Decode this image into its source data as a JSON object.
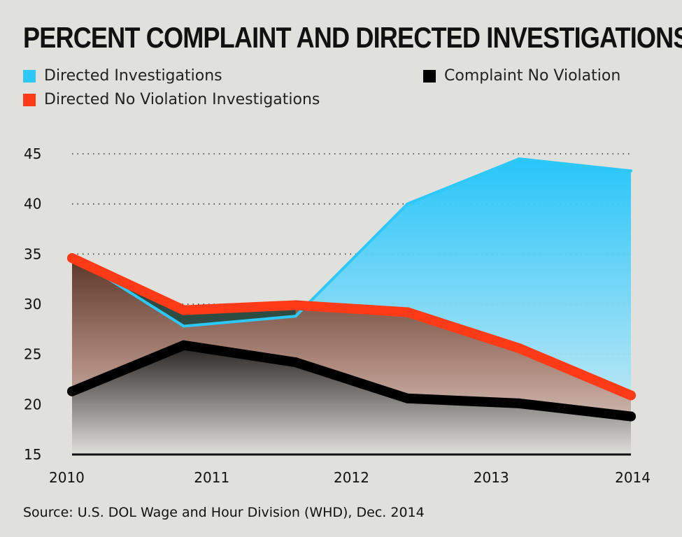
{
  "title": "PERCENT COMPLAINT AND DIRECTED INVESTIGATIONS",
  "source": "Source: U.S. DOL Wage and Hour Division (WHD), Dec. 2014",
  "legend": [
    {
      "label": "Directed Investigations",
      "color": "#2ec8f8"
    },
    {
      "label": "Directed No Violation Investigations",
      "color": "#ff3a16"
    },
    {
      "label": "Complaint No Violation",
      "color": "#000000"
    }
  ],
  "chart_data": {
    "type": "area",
    "title": "PERCENT COMPLAINT AND DIRECTED INVESTIGATIONS",
    "xlabel": "",
    "ylabel": "",
    "x_tick_labels": [
      "2010",
      "2011",
      "2012",
      "2013",
      "2014"
    ],
    "y_ticks": [
      15,
      20,
      25,
      30,
      35,
      40,
      45
    ],
    "xlim": [
      2010,
      2014
    ],
    "ylim": [
      15,
      45
    ],
    "grid": "horizontal dotted",
    "legend_position": "top",
    "series": [
      {
        "name": "Directed Investigations",
        "color": "#2ec8f8",
        "x": [
          2010,
          2010.8,
          2011.6,
          2012.4,
          2013.2,
          2014
        ],
        "y": [
          34.8,
          27.8,
          28.8,
          40.0,
          44.5,
          43.3
        ]
      },
      {
        "name": "Directed No Violation Investigations",
        "color": "#ff3a16",
        "x": [
          2010,
          2010.8,
          2011.6,
          2012.4,
          2013.2,
          2014
        ],
        "y": [
          34.6,
          29.4,
          29.9,
          29.2,
          25.6,
          20.9
        ]
      },
      {
        "name": "Complaint No Violation",
        "color": "#000000",
        "x": [
          2010,
          2010.8,
          2011.6,
          2012.4,
          2013.2,
          2014
        ],
        "y": [
          21.3,
          25.9,
          24.2,
          20.6,
          20.1,
          18.8
        ]
      }
    ]
  }
}
